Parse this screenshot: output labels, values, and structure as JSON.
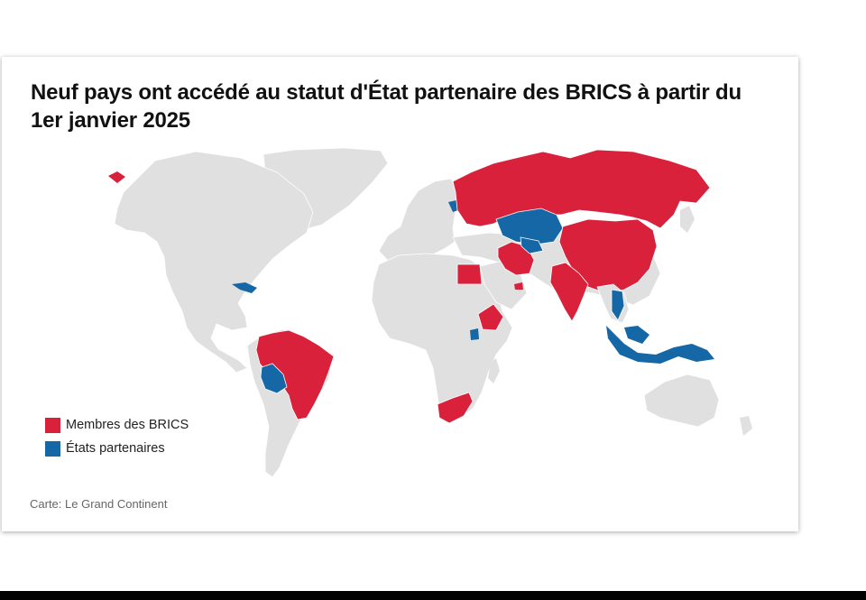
{
  "map": {
    "title": "Neuf pays ont accédé au statut d'État partenaire des BRICS à partir du 1er janvier 2025",
    "colors": {
      "members": "#d9213b",
      "partners": "#1667a5",
      "other": "#e0e0e0",
      "border": "#ffffff"
    },
    "legend": [
      {
        "label": "Membres des BRICS",
        "color": "#d9213b"
      },
      {
        "label": "États partenaires",
        "color": "#1667a5"
      }
    ],
    "source": "Carte: Le Grand Continent"
  }
}
